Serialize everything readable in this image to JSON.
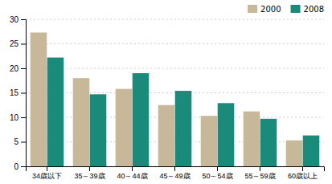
{
  "chart_data": {
    "type": "bar",
    "categories": [
      "34歳以下",
      "35～39歳",
      "40～44歳",
      "45～49歳",
      "50～54歳",
      "55～59歳",
      "60歳以上"
    ],
    "series": [
      {
        "name": "2000",
        "color": "#c8b89a",
        "values": [
          27.3,
          18.0,
          15.8,
          12.5,
          10.3,
          11.2,
          5.3
        ]
      },
      {
        "name": "2008",
        "color": "#1a8a7a",
        "values": [
          22.2,
          14.7,
          19.0,
          15.4,
          12.9,
          9.7,
          6.3
        ]
      }
    ],
    "ylim": [
      0,
      30
    ],
    "yticks": [
      0,
      5,
      10,
      15,
      20,
      25,
      30
    ],
    "grid": true,
    "legend": "upper right"
  }
}
